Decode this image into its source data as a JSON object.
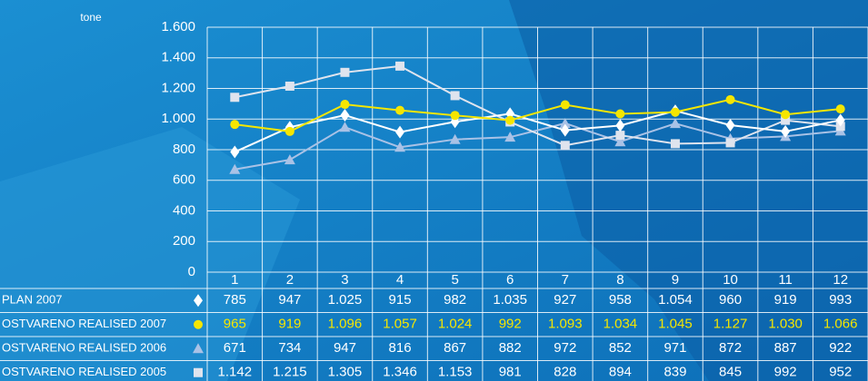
{
  "chart_data": {
    "type": "line",
    "y_label": "tone",
    "categories": [
      "1",
      "2",
      "3",
      "4",
      "5",
      "6",
      "7",
      "8",
      "9",
      "10",
      "11",
      "12"
    ],
    "ylim": [
      0,
      1600
    ],
    "yticks": [
      0,
      200,
      400,
      600,
      800,
      {
        "value": 1000,
        "label": "1.000"
      },
      {
        "value": 1200,
        "label": "1.200"
      },
      {
        "value": 1400,
        "label": "1.400"
      },
      {
        "value": 1600,
        "label": "1.600"
      }
    ],
    "grid": true,
    "series": [
      {
        "name": "PLAN 2007",
        "color": "#ffffff",
        "text_color": "#ffffff",
        "marker": "diamond",
        "values": [
          785,
          947,
          1025,
          915,
          982,
          1035,
          927,
          958,
          1054,
          960,
          919,
          993
        ],
        "value_labels": [
          "785",
          "947",
          "1.025",
          "915",
          "982",
          "1.035",
          "927",
          "958",
          "1.054",
          "960",
          "919",
          "993"
        ]
      },
      {
        "name": "OSTVARENO REALISED 2007",
        "color": "#f5e600",
        "text_color": "#f5e600",
        "marker": "circle",
        "values": [
          965,
          919,
          1096,
          1057,
          1024,
          992,
          1093,
          1034,
          1045,
          1127,
          1030,
          1066
        ],
        "value_labels": [
          "965",
          "919",
          "1.096",
          "1.057",
          "1.024",
          "992",
          "1.093",
          "1.034",
          "1.045",
          "1.127",
          "1.030",
          "1.066"
        ]
      },
      {
        "name": "OSTVARENO REALISED 2006",
        "color": "#a9c2e6",
        "text_color": "#ffffff",
        "marker": "triangle",
        "values": [
          671,
          734,
          947,
          816,
          867,
          882,
          972,
          852,
          971,
          872,
          887,
          922
        ],
        "value_labels": [
          "671",
          "734",
          "947",
          "816",
          "867",
          "882",
          "972",
          "852",
          "971",
          "872",
          "887",
          "922"
        ]
      },
      {
        "name": "OSTVARENO REALISED 2005",
        "color": "#dfe4ee",
        "text_color": "#ffffff",
        "marker": "square",
        "values": [
          1142,
          1215,
          1305,
          1346,
          1153,
          981,
          828,
          894,
          839,
          845,
          992,
          952
        ],
        "value_labels": [
          "1.142",
          "1.215",
          "1.305",
          "1.346",
          "1.153",
          "981",
          "828",
          "894",
          "839",
          "845",
          "992",
          "952"
        ]
      }
    ]
  }
}
